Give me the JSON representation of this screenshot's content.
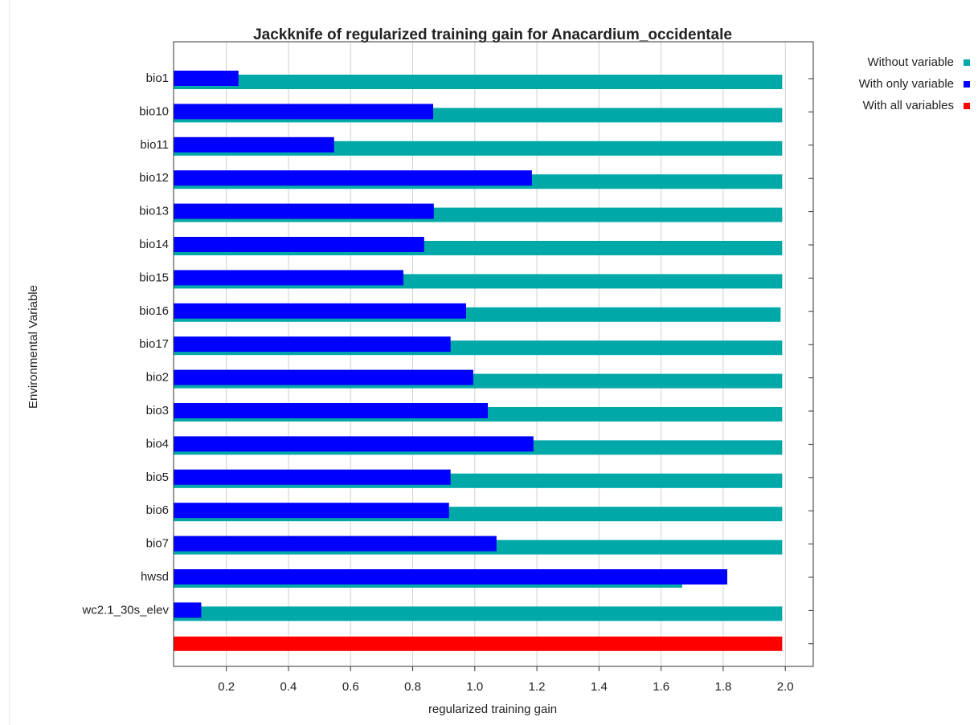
{
  "chart_data": {
    "type": "jackknife_bar",
    "title": "Jackknife of regularized training gain for Anacardium_occidentale",
    "xlabel": "regularized training gain",
    "ylabel": "Environmental Variable",
    "categories": [
      "bio1",
      "bio10",
      "bio11",
      "bio12",
      "bio13",
      "bio14",
      "bio15",
      "bio16",
      "bio17",
      "bio2",
      "bio3",
      "bio4",
      "bio5",
      "bio6",
      "bio7",
      "hwsd",
      "wc2.1_30s_elev",
      null
    ],
    "series": [
      {
        "name": "Without variable",
        "color": "#00a8a8",
        "values": [
          1.99,
          1.99,
          1.99,
          1.99,
          1.99,
          1.99,
          1.99,
          1.985,
          1.99,
          1.99,
          1.99,
          1.99,
          1.99,
          1.99,
          1.99,
          1.668,
          1.99,
          null
        ]
      },
      {
        "name": "With only variable",
        "color": "#0000ff",
        "values": [
          0.239,
          0.866,
          0.547,
          1.184,
          0.868,
          0.837,
          0.77,
          0.972,
          0.922,
          0.995,
          1.042,
          1.189,
          0.922,
          0.917,
          1.07,
          1.813,
          0.119,
          null
        ]
      },
      {
        "name": "With all variables",
        "color": "#ff0000",
        "values": [
          null,
          null,
          null,
          null,
          null,
          null,
          null,
          null,
          null,
          null,
          null,
          null,
          null,
          null,
          null,
          null,
          null,
          1.99
        ]
      }
    ],
    "xlim": [
      0.03,
      2.09
    ],
    "xticks": [
      0.2,
      0.4,
      0.6,
      0.8,
      {
        "value": 1.0,
        "label": "1.0"
      },
      1.2,
      1.4,
      1.6,
      1.8,
      {
        "value": 2.0,
        "label": "2.0"
      }
    ],
    "grid": true,
    "legend": "upper right outside"
  }
}
